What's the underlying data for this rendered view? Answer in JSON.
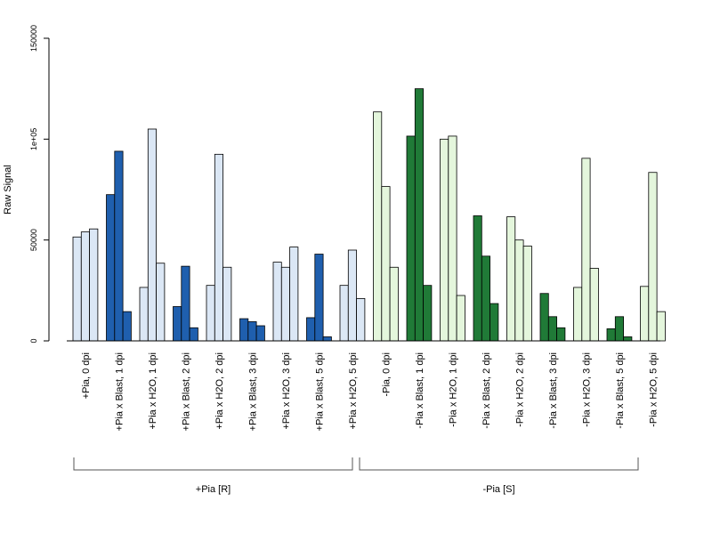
{
  "chart_data": {
    "type": "bar",
    "ylabel": "Raw Signal",
    "ylim": [
      0,
      150000
    ],
    "yticks": [
      {
        "value": 0,
        "label": "0"
      },
      {
        "value": 50000,
        "label": "50000"
      },
      {
        "value": 100000,
        "label": "1e+05"
      },
      {
        "value": 150000,
        "label": "150000"
      }
    ],
    "categories": [
      "+Pia, 0 dpi",
      "+Pia x Blast, 1 dpi",
      "+Pia x H2O, 1 dpi",
      "+Pia x Blast, 2 dpi",
      "+Pia x H2O, 2 dpi",
      "+Pia x Blast, 3 dpi",
      "+Pia x H2O, 3 dpi",
      "+Pia x Blast, 5 dpi",
      "+Pia x H2O, 5 dpi",
      "-Pia, 0 dpi",
      "-Pia x Blast, 1 dpi",
      "-Pia x H2O, 1 dpi",
      "-Pia x Blast, 2 dpi",
      "-Pia x H2O, 2 dpi",
      "-Pia x Blast, 3 dpi",
      "-Pia x H2O, 3 dpi",
      "-Pia x Blast, 5 dpi",
      "-Pia x H2O, 5 dpi"
    ],
    "values": [
      [
        51500,
        54000,
        55500
      ],
      [
        72500,
        94000,
        14500
      ],
      [
        26500,
        105000,
        38500
      ],
      [
        17000,
        37000,
        6500
      ],
      [
        27500,
        92500,
        36500
      ],
      [
        11000,
        9500,
        7500
      ],
      [
        39000,
        36500,
        46500
      ],
      [
        11500,
        43000,
        2000
      ],
      [
        27500,
        45000,
        21000
      ],
      [
        113500,
        76500,
        36500
      ],
      [
        101500,
        125000,
        27500
      ],
      [
        100000,
        101500,
        22500
      ],
      [
        62000,
        42000,
        18500
      ],
      [
        61500,
        50000,
        47000
      ],
      [
        23500,
        12000,
        6500
      ],
      [
        26500,
        90500,
        36000
      ],
      [
        6000,
        12000,
        2000
      ],
      [
        27000,
        83500,
        14500
      ]
    ],
    "bar_colors": [
      "#dbe7f5",
      "#1f5fae",
      "#dbe7f5",
      "#1f5fae",
      "#dbe7f5",
      "#1f5fae",
      "#dbe7f5",
      "#1f5fae",
      "#dbe7f5",
      "#e4f6dc",
      "#207a37",
      "#e4f6dc",
      "#207a37",
      "#e4f6dc",
      "#207a37",
      "#e4f6dc",
      "#207a37",
      "#e4f6dc"
    ],
    "groups": [
      {
        "label": "+Pia [R]",
        "from": 0,
        "to": 8
      },
      {
        "label": "-Pia [S]",
        "from": 9,
        "to": 17
      }
    ]
  }
}
